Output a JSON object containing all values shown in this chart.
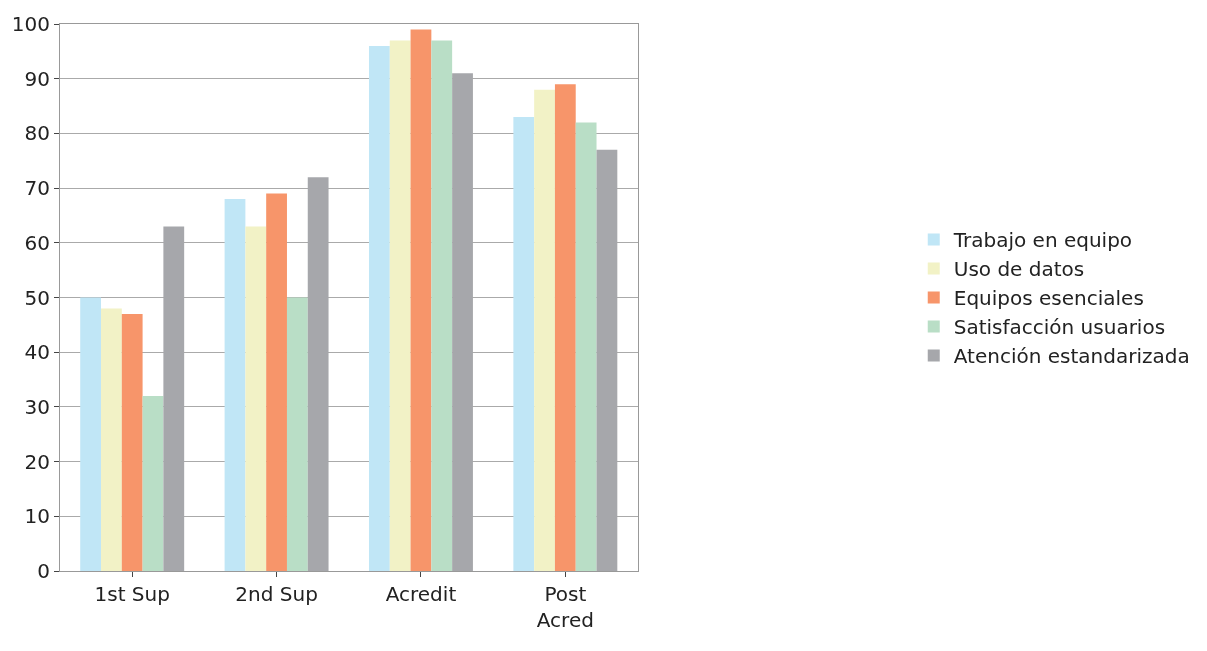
{
  "chart_data": {
    "type": "bar",
    "categories": [
      "1st Sup",
      "2nd Sup",
      "Acredit",
      "Post\nAcred"
    ],
    "series": [
      {
        "name": "Trabajo en equipo",
        "color": "#c0e6f6",
        "values": [
          50,
          68,
          96,
          83
        ]
      },
      {
        "name": "Uso de datos",
        "color": "#f2f2c6",
        "values": [
          48,
          63,
          97,
          88
        ]
      },
      {
        "name": "Equipos esenciales",
        "color": "#f7956a",
        "values": [
          47,
          69,
          99,
          89
        ]
      },
      {
        "name": "Satisfacción usuarios",
        "color": "#b9dec6",
        "values": [
          32,
          50,
          97,
          82
        ]
      },
      {
        "name": "Atención estandarizada",
        "color": "#a6a7ab",
        "values": [
          63,
          72,
          91,
          77
        ]
      }
    ],
    "ylim": [
      0,
      100
    ],
    "yticks": [
      0,
      10,
      20,
      30,
      40,
      50,
      60,
      70,
      80,
      90,
      100
    ],
    "grid": "y",
    "legend": "right"
  }
}
